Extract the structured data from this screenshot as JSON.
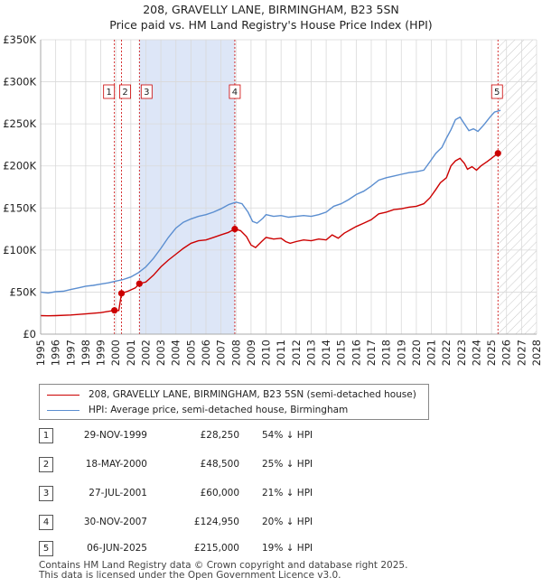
{
  "title": {
    "line1": "208, GRAVELLY LANE, BIRMINGHAM, B23 5SN",
    "line2": "Price paid vs. HM Land Registry's House Price Index (HPI)"
  },
  "colors": {
    "property": "#cc0000",
    "hpi": "#5b8ed0",
    "shade": "#dde6f7",
    "grid": "#d9d9d9"
  },
  "chart_data": {
    "type": "line",
    "xlim": [
      1995,
      2028
    ],
    "ylim": [
      0,
      350000
    ],
    "x_ticks": [
      "1995",
      "1996",
      "1997",
      "1998",
      "1999",
      "2000",
      "2001",
      "2002",
      "2003",
      "2004",
      "2005",
      "2006",
      "2007",
      "2008",
      "2009",
      "2010",
      "2011",
      "2012",
      "2013",
      "2014",
      "2015",
      "2016",
      "2017",
      "2018",
      "2019",
      "2020",
      "2021",
      "2022",
      "2023",
      "2024",
      "2025",
      "2026",
      "2027",
      "2028"
    ],
    "y_ticks": [
      {
        "value": 0,
        "label": "£0"
      },
      {
        "value": 50000,
        "label": "£50K"
      },
      {
        "value": 100000,
        "label": "£100K"
      },
      {
        "value": 150000,
        "label": "£150K"
      },
      {
        "value": 200000,
        "label": "£200K"
      },
      {
        "value": 250000,
        "label": "£250K"
      },
      {
        "value": 300000,
        "label": "£300K"
      },
      {
        "value": 350000,
        "label": "£350K"
      }
    ],
    "shaded_region": [
      2001.57,
      2007.92
    ],
    "future_hatch_from": 2025.43,
    "series": [
      {
        "name": "208, GRAVELLY LANE, BIRMINGHAM, B23 5SN (semi-detached house)",
        "color": "#cc0000",
        "points": [
          [
            1995,
            22000
          ],
          [
            1995.5,
            21800
          ],
          [
            1996,
            22000
          ],
          [
            1997,
            22800
          ],
          [
            1998,
            24000
          ],
          [
            1999,
            25500
          ],
          [
            1999.91,
            28250
          ],
          [
            2000.2,
            28000
          ],
          [
            2000.38,
            48500
          ],
          [
            2000.8,
            51000
          ],
          [
            2001.3,
            55000
          ],
          [
            2001.57,
            60000
          ],
          [
            2002,
            62000
          ],
          [
            2002.5,
            70000
          ],
          [
            2003,
            80000
          ],
          [
            2003.5,
            88000
          ],
          [
            2004,
            95000
          ],
          [
            2004.5,
            102000
          ],
          [
            2005,
            108000
          ],
          [
            2005.5,
            111000
          ],
          [
            2006,
            112000
          ],
          [
            2006.5,
            115000
          ],
          [
            2007,
            118000
          ],
          [
            2007.5,
            121000
          ],
          [
            2007.92,
            124950
          ],
          [
            2008.3,
            123000
          ],
          [
            2008.7,
            116000
          ],
          [
            2009,
            106000
          ],
          [
            2009.3,
            103000
          ],
          [
            2009.7,
            110000
          ],
          [
            2010,
            115000
          ],
          [
            2010.5,
            113000
          ],
          [
            2011,
            114000
          ],
          [
            2011.3,
            110000
          ],
          [
            2011.6,
            108000
          ],
          [
            2012,
            110000
          ],
          [
            2012.5,
            112000
          ],
          [
            2013,
            111000
          ],
          [
            2013.5,
            113000
          ],
          [
            2014,
            112000
          ],
          [
            2014.4,
            118000
          ],
          [
            2014.8,
            114000
          ],
          [
            2015.2,
            120000
          ],
          [
            2015.6,
            124000
          ],
          [
            2016,
            128000
          ],
          [
            2016.5,
            132000
          ],
          [
            2017,
            136000
          ],
          [
            2017.5,
            143000
          ],
          [
            2018,
            145000
          ],
          [
            2018.5,
            148000
          ],
          [
            2019,
            149000
          ],
          [
            2019.5,
            151000
          ],
          [
            2020,
            152000
          ],
          [
            2020.5,
            155000
          ],
          [
            2020.9,
            162000
          ],
          [
            2021.3,
            172000
          ],
          [
            2021.6,
            180000
          ],
          [
            2022,
            186000
          ],
          [
            2022.3,
            200000
          ],
          [
            2022.6,
            206000
          ],
          [
            2022.9,
            209000
          ],
          [
            2023.2,
            203000
          ],
          [
            2023.4,
            196000
          ],
          [
            2023.7,
            199000
          ],
          [
            2024,
            195000
          ],
          [
            2024.3,
            200000
          ],
          [
            2024.7,
            205000
          ],
          [
            2025,
            209000
          ],
          [
            2025.43,
            215000
          ]
        ]
      },
      {
        "name": "HPI: Average price, semi-detached house, Birmingham",
        "color": "#5b8ed0",
        "points": [
          [
            1995,
            50000
          ],
          [
            1995.5,
            49000
          ],
          [
            1996,
            50500
          ],
          [
            1996.5,
            51000
          ],
          [
            1997,
            53000
          ],
          [
            1997.5,
            55000
          ],
          [
            1998,
            57000
          ],
          [
            1998.5,
            58000
          ],
          [
            1999,
            59500
          ],
          [
            1999.5,
            61000
          ],
          [
            2000,
            63000
          ],
          [
            2000.5,
            65000
          ],
          [
            2001,
            68000
          ],
          [
            2001.5,
            73000
          ],
          [
            2002,
            80000
          ],
          [
            2002.5,
            90000
          ],
          [
            2003,
            102000
          ],
          [
            2003.5,
            115000
          ],
          [
            2004,
            126000
          ],
          [
            2004.5,
            133000
          ],
          [
            2005,
            137000
          ],
          [
            2005.5,
            140000
          ],
          [
            2006,
            142000
          ],
          [
            2006.5,
            145000
          ],
          [
            2007,
            149000
          ],
          [
            2007.5,
            154000
          ],
          [
            2008,
            157000
          ],
          [
            2008.4,
            155000
          ],
          [
            2008.8,
            145000
          ],
          [
            2009.1,
            134000
          ],
          [
            2009.4,
            132000
          ],
          [
            2009.8,
            138000
          ],
          [
            2010,
            142000
          ],
          [
            2010.5,
            140000
          ],
          [
            2011,
            141000
          ],
          [
            2011.5,
            139000
          ],
          [
            2012,
            140000
          ],
          [
            2012.5,
            141000
          ],
          [
            2013,
            140000
          ],
          [
            2013.5,
            142000
          ],
          [
            2014,
            145000
          ],
          [
            2014.5,
            152000
          ],
          [
            2015,
            155000
          ],
          [
            2015.5,
            160000
          ],
          [
            2016,
            166000
          ],
          [
            2016.5,
            170000
          ],
          [
            2017,
            176000
          ],
          [
            2017.5,
            183000
          ],
          [
            2018,
            186000
          ],
          [
            2018.5,
            188000
          ],
          [
            2019,
            190000
          ],
          [
            2019.5,
            192000
          ],
          [
            2020,
            193000
          ],
          [
            2020.5,
            195000
          ],
          [
            2020.9,
            205000
          ],
          [
            2021.3,
            215000
          ],
          [
            2021.7,
            222000
          ],
          [
            2022,
            233000
          ],
          [
            2022.3,
            243000
          ],
          [
            2022.6,
            255000
          ],
          [
            2022.9,
            258000
          ],
          [
            2023.2,
            250000
          ],
          [
            2023.5,
            242000
          ],
          [
            2023.8,
            244000
          ],
          [
            2024.1,
            241000
          ],
          [
            2024.5,
            249000
          ],
          [
            2024.9,
            258000
          ],
          [
            2025.2,
            264000
          ],
          [
            2025.6,
            266000
          ]
        ]
      }
    ],
    "sale_markers": [
      {
        "id": "1",
        "x": 1999.91,
        "y": 28250
      },
      {
        "id": "2",
        "x": 2000.38,
        "y": 48500
      },
      {
        "id": "3",
        "x": 2001.57,
        "y": 60000
      },
      {
        "id": "4",
        "x": 2007.92,
        "y": 124950
      },
      {
        "id": "5",
        "x": 2025.43,
        "y": 215000
      }
    ]
  },
  "legend": {
    "property": "208, GRAVELLY LANE, BIRMINGHAM, B23 5SN (semi-detached house)",
    "hpi": "HPI: Average price, semi-detached house, Birmingham"
  },
  "sales": [
    {
      "num": "1",
      "date": "29-NOV-1999",
      "price": "£28,250",
      "hpi": "54% ↓ HPI"
    },
    {
      "num": "2",
      "date": "18-MAY-2000",
      "price": "£48,500",
      "hpi": "25% ↓ HPI"
    },
    {
      "num": "3",
      "date": "27-JUL-2001",
      "price": "£60,000",
      "hpi": "21% ↓ HPI"
    },
    {
      "num": "4",
      "date": "30-NOV-2007",
      "price": "£124,950",
      "hpi": "20% ↓ HPI"
    },
    {
      "num": "5",
      "date": "06-JUN-2025",
      "price": "£215,000",
      "hpi": "19% ↓ HPI"
    }
  ],
  "footer": {
    "line1": "Contains HM Land Registry data © Crown copyright and database right 2025.",
    "line2": "This data is licensed under the Open Government Licence v3.0."
  }
}
